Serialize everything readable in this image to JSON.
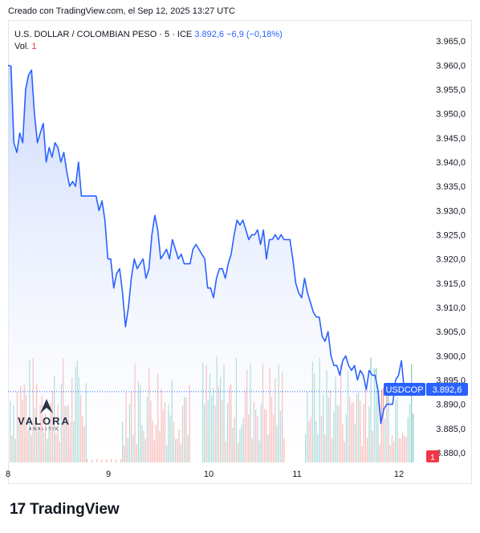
{
  "caption": "Creado con TradingView.com, el Sep 12, 2025 13:27 UTC",
  "legend": {
    "symbol": "U.S. DOLLAR / COLOMBIAN PESO · 5 · ICE",
    "price": "3.892,6",
    "change": "−6,9 (−0,18%)",
    "vol_label": "Vol.",
    "vol_value": "1"
  },
  "badges": {
    "ticker": "USDCOP",
    "price": "3.892,6",
    "volume": "1"
  },
  "watermark": {
    "title": "VALORA",
    "subtitle": "ANALITIK"
  },
  "footer": {
    "brand": "TradingView",
    "mark": "17"
  },
  "colors": {
    "line": "#2962ff",
    "fill_top": "#c9d7fb",
    "fill_bottom": "#ffffff",
    "vol_up": "#26a69a",
    "vol_down": "#ef5350",
    "axis_text": "#131722"
  },
  "chart_data": {
    "type": "line",
    "title": "",
    "xlabel": "",
    "ylabel": "",
    "ylim": [
      3878.0,
      3967.5
    ],
    "x_ticks": [
      {
        "label": "8",
        "x": 0
      },
      {
        "label": "9",
        "x": 1
      },
      {
        "label": "10",
        "x": 2
      },
      {
        "label": "11",
        "x": 3
      },
      {
        "label": "12",
        "x": 4
      }
    ],
    "y_ticks": [
      "3.880,0",
      "3.885,0",
      "3.890,0",
      "3.895,0",
      "3.900,0",
      "3.905,0",
      "3.910,0",
      "3.915,0",
      "3.920,0",
      "3.925,0",
      "3.930,0",
      "3.935,0",
      "3.940,0",
      "3.945,0",
      "3.950,0",
      "3.955,0",
      "3.960,0",
      "3.965,0"
    ],
    "y_tick_values": [
      3880,
      3885,
      3890,
      3895,
      3900,
      3905,
      3910,
      3915,
      3920,
      3925,
      3930,
      3935,
      3940,
      3945,
      3950,
      3955,
      3960,
      3965
    ],
    "last_price": 3892.6,
    "series": [
      {
        "x": [
          0,
          0.03,
          0.06,
          0.09,
          0.12,
          0.15,
          0.18,
          0.21,
          0.24,
          0.27,
          0.3,
          0.33,
          0.36,
          0.39,
          0.42,
          0.45,
          0.48,
          0.51,
          0.54,
          0.57,
          0.6,
          0.63,
          0.66,
          0.69,
          0.72,
          0.75,
          0.78,
          0.81,
          0.84,
          0.87,
          0.9,
          0.93,
          0.96,
          0.99,
          1.02,
          1.05,
          1.08,
          1.11,
          1.14,
          1.17,
          1.2,
          1.23,
          1.26,
          1.29,
          1.32,
          1.35,
          1.38,
          1.41,
          1.44,
          1.47,
          1.5,
          1.53,
          1.56,
          1.59,
          1.62,
          1.65,
          1.68,
          1.71,
          1.74,
          1.77,
          1.8,
          1.83,
          1.86,
          1.89,
          1.92,
          1.95,
          1.98,
          2.01,
          2.04,
          2.07,
          2.1,
          2.13,
          2.16,
          2.19,
          2.22,
          2.25,
          2.28,
          2.31,
          2.34,
          2.37,
          2.4,
          2.43,
          2.46,
          2.49,
          2.52,
          2.55,
          2.58,
          2.61,
          2.64,
          2.67,
          2.7,
          2.73,
          2.76,
          2.79,
          2.82,
          2.85,
          2.88,
          2.91,
          2.94,
          2.97,
          3.0,
          3.03,
          3.06,
          3.09,
          3.12,
          3.15,
          3.18,
          3.21,
          3.24,
          3.27,
          3.3,
          3.33,
          3.36,
          3.39,
          3.42,
          3.45,
          3.48,
          3.51,
          3.54,
          3.57,
          3.6,
          3.63,
          3.66,
          3.69,
          3.72,
          3.75,
          3.78,
          3.81,
          3.84,
          3.87,
          3.9,
          3.93,
          3.96,
          3.99,
          4.02,
          4.05,
          4.08,
          4.11
        ],
        "values": [
          3960.0,
          3959.8,
          3944.0,
          3942.0,
          3946.0,
          3944.0,
          3955.0,
          3958.0,
          3959.0,
          3950.0,
          3944.0,
          3946.0,
          3948.0,
          3940.0,
          3943.0,
          3941.0,
          3944.0,
          3943.0,
          3940.0,
          3942.0,
          3938.0,
          3935.0,
          3936.0,
          3935.0,
          3940.0,
          3933.0,
          3933.0,
          3933.0,
          3933.0,
          3933.0,
          3933.0,
          3930.0,
          3932.0,
          3928.0,
          3920.0,
          3920.0,
          3914.0,
          3917.0,
          3918.0,
          3913.0,
          3906.0,
          3910.0,
          3916.0,
          3920.0,
          3918.0,
          3919.0,
          3920.0,
          3916.0,
          3918.0,
          3925.0,
          3929.0,
          3926.0,
          3920.0,
          3921.0,
          3922.0,
          3920.0,
          3924.0,
          3922.0,
          3920.0,
          3921.0,
          3919.0,
          3919.0,
          3919.0,
          3922.0,
          3923.0,
          3922.0,
          3921.0,
          3920.0,
          3914.0,
          3914.0,
          3912.0,
          3916.0,
          3918.0,
          3918.0,
          3916.0,
          3919.0,
          3921.0,
          3925.0,
          3928.0,
          3927.0,
          3928.0,
          3926.0,
          3924.0,
          3925.0,
          3925.0,
          3926.0,
          3923.0,
          3926.0,
          3920.0,
          3924.0,
          3924.0,
          3925.0,
          3924.0,
          3925.0,
          3924.0,
          3924.0,
          3924.0,
          3920.0,
          3915.0,
          3913.0,
          3912.0,
          3916.0,
          3913.0,
          3911.0,
          3909.0,
          3908.0,
          3908.0,
          3904.0,
          3903.0,
          3905.0,
          3900.0,
          3898.0,
          3898.0,
          3896.0,
          3899.0,
          3900.0,
          3898.0,
          3897.0,
          3898.0,
          3895.0,
          3897.0,
          3896.0,
          3893.0,
          3897.0,
          3896.0,
          3896.0,
          3893.0,
          3886.0,
          3889.0,
          3890.0,
          3890.0,
          3890.0,
          3895.0,
          3896.0,
          3899.0,
          3892.6,
          3892.6,
          3892.6
        ]
      }
    ],
    "volume_note": "volume histogram shown at bottom"
  }
}
